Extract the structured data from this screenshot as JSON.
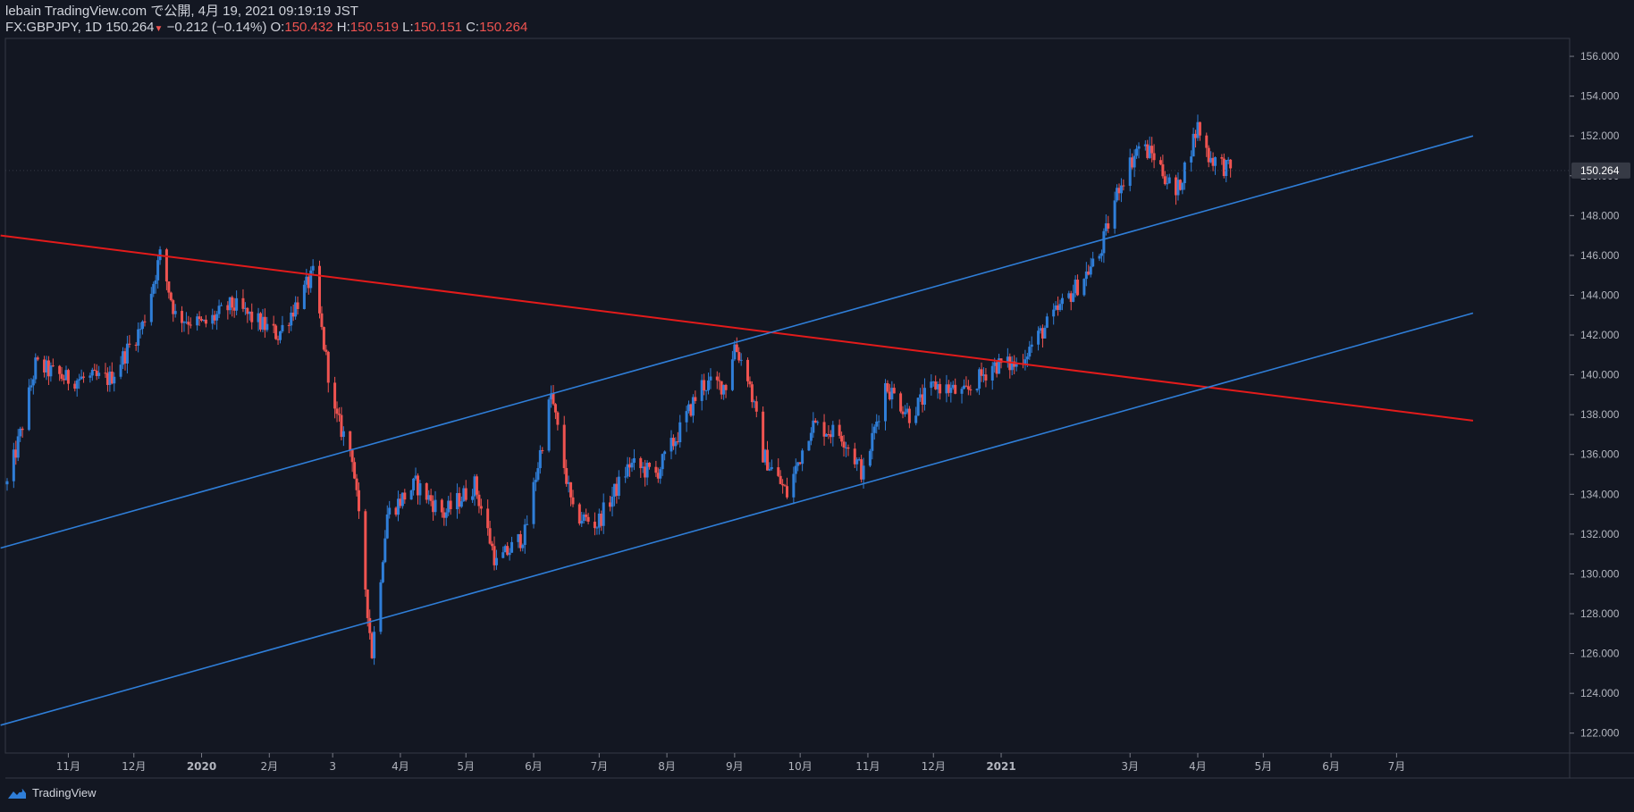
{
  "header": {
    "published_line": "lebain TradingView.com で公開, 4月 19, 2021 09:19:19 JST",
    "symbol": "FX:GBPJPY, 1D",
    "last": "150.264",
    "change": "−0.212 (−0.14%)",
    "o_label": "O:",
    "o_value": "150.432",
    "h_label": "H:",
    "h_value": "150.519",
    "l_label": "L:",
    "l_value": "150.151",
    "c_label": "C:",
    "c_value": "150.264"
  },
  "footer": {
    "brand": "TradingView"
  },
  "colors": {
    "background": "#131722",
    "up": "#2f7ed8",
    "down": "#ef5350",
    "trend_blue": "#2f7ed8",
    "trend_red": "#e31b1b",
    "axis_text": "#b2b5be"
  },
  "chart_data": {
    "type": "candlestick",
    "symbol": "FX:GBPJPY",
    "interval": "1D",
    "ylim": [
      121.0,
      156.9
    ],
    "y_ticks": [
      "156.000",
      "154.000",
      "152.000",
      "150.000",
      "148.000",
      "146.000",
      "144.000",
      "142.000",
      "140.000",
      "138.000",
      "136.000",
      "134.000",
      "132.000",
      "130.000",
      "128.000",
      "126.000",
      "124.000",
      "122.000"
    ],
    "x_ticks": [
      "11月",
      "12月",
      "2020",
      "2月",
      "3",
      "4月",
      "5月",
      "6月",
      "7月",
      "8月",
      "9月",
      "10月",
      "11月",
      "12月",
      "2021",
      "3月",
      "4月",
      "5月",
      "6月",
      "7月"
    ],
    "last_price_label": "150.264",
    "price_path_anchors": [
      {
        "date": "2019-10-04",
        "close": 134.5
      },
      {
        "date": "2019-10-10",
        "close": 137.0
      },
      {
        "date": "2019-10-17",
        "close": 140.5
      },
      {
        "date": "2019-10-31",
        "close": 139.8
      },
      {
        "date": "2019-11-20",
        "close": 139.8
      },
      {
        "date": "2019-12-05",
        "close": 142.5
      },
      {
        "date": "2019-12-13",
        "close": 146.0
      },
      {
        "date": "2019-12-20",
        "close": 143.0
      },
      {
        "date": "2020-01-02",
        "close": 142.5
      },
      {
        "date": "2020-01-15",
        "close": 143.5
      },
      {
        "date": "2020-02-05",
        "close": 142.0
      },
      {
        "date": "2020-02-21",
        "close": 145.0
      },
      {
        "date": "2020-03-02",
        "close": 138.0
      },
      {
        "date": "2020-03-10",
        "close": 136.0
      },
      {
        "date": "2020-03-19",
        "close": 126.0
      },
      {
        "date": "2020-03-26",
        "close": 133.0
      },
      {
        "date": "2020-04-08",
        "close": 134.5
      },
      {
        "date": "2020-04-21",
        "close": 133.0
      },
      {
        "date": "2020-05-05",
        "close": 134.5
      },
      {
        "date": "2020-05-15",
        "close": 130.5
      },
      {
        "date": "2020-05-28",
        "close": 132.0
      },
      {
        "date": "2020-06-09",
        "close": 139.0
      },
      {
        "date": "2020-06-19",
        "close": 133.0
      },
      {
        "date": "2020-06-30",
        "close": 132.5
      },
      {
        "date": "2020-07-15",
        "close": 135.5
      },
      {
        "date": "2020-07-27",
        "close": 135.0
      },
      {
        "date": "2020-08-06",
        "close": 137.0
      },
      {
        "date": "2020-08-17",
        "close": 139.5
      },
      {
        "date": "2020-08-28",
        "close": 139.5
      },
      {
        "date": "2020-09-01",
        "close": 141.5
      },
      {
        "date": "2020-09-07",
        "close": 140.0
      },
      {
        "date": "2020-09-14",
        "close": 136.0
      },
      {
        "date": "2020-09-25",
        "close": 134.0
      },
      {
        "date": "2020-10-06",
        "close": 137.5
      },
      {
        "date": "2020-10-20",
        "close": 137.0
      },
      {
        "date": "2020-10-30",
        "close": 135.0
      },
      {
        "date": "2020-11-09",
        "close": 139.5
      },
      {
        "date": "2020-11-20",
        "close": 138.0
      },
      {
        "date": "2020-12-02",
        "close": 139.5
      },
      {
        "date": "2020-12-15",
        "close": 139.0
      },
      {
        "date": "2020-12-28",
        "close": 140.5
      },
      {
        "date": "2021-01-08",
        "close": 140.5
      },
      {
        "date": "2021-01-22",
        "close": 142.5
      },
      {
        "date": "2021-02-05",
        "close": 144.5
      },
      {
        "date": "2021-02-15",
        "close": 146.0
      },
      {
        "date": "2021-02-24",
        "close": 149.5
      },
      {
        "date": "2021-03-05",
        "close": 151.5
      },
      {
        "date": "2021-03-12",
        "close": 151.0
      },
      {
        "date": "2021-03-22",
        "close": 149.0
      },
      {
        "date": "2021-04-01",
        "close": 152.5
      },
      {
        "date": "2021-04-06",
        "close": 151.0
      },
      {
        "date": "2021-04-16",
        "close": 150.264
      }
    ],
    "trendlines": [
      {
        "color": "red",
        "from": {
          "date": "2019-10-01",
          "price": 147.0
        },
        "to": {
          "date": "2021-08-05",
          "price": 137.7
        }
      },
      {
        "color": "blue",
        "from": {
          "date": "2019-10-01",
          "price": 131.3
        },
        "to": {
          "date": "2021-08-05",
          "price": 152.0
        }
      },
      {
        "color": "blue",
        "from": {
          "date": "2019-10-01",
          "price": 122.4
        },
        "to": {
          "date": "2021-08-05",
          "price": 143.1
        }
      }
    ]
  }
}
